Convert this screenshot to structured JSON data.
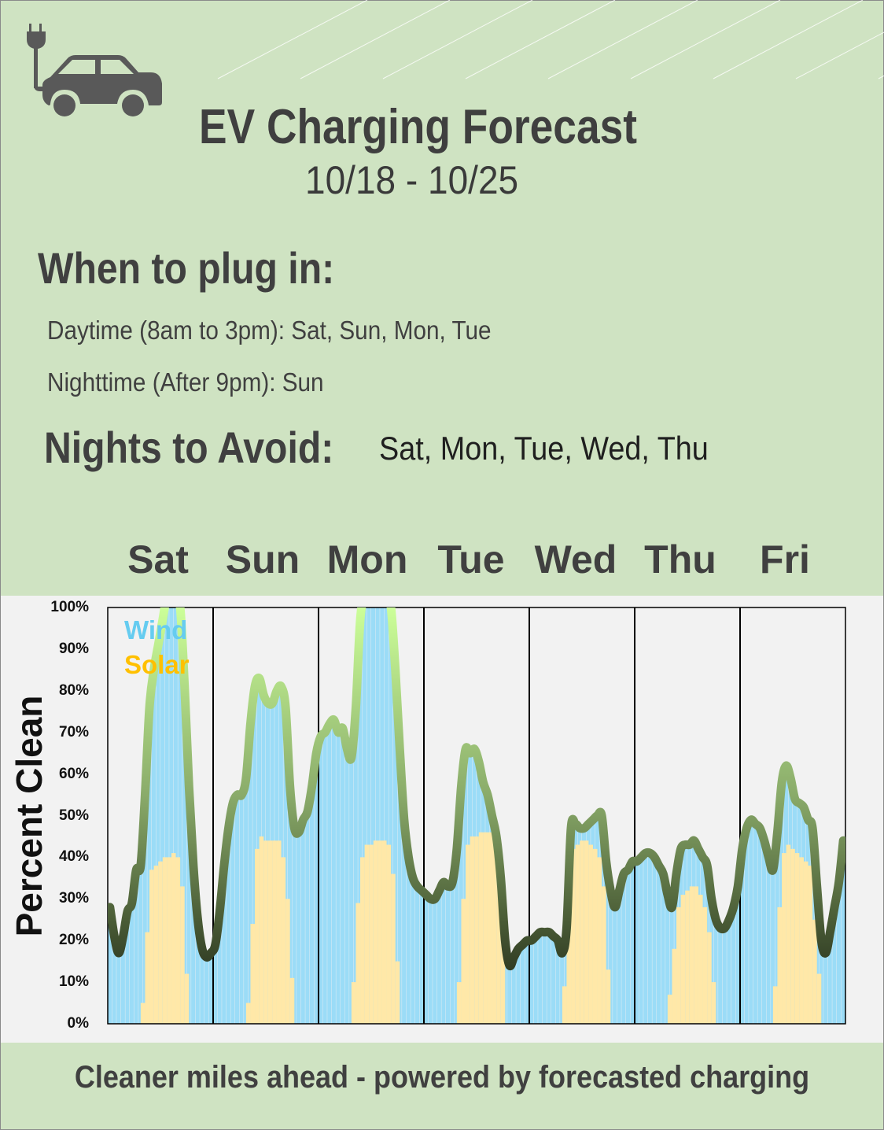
{
  "header": {
    "title": "EV Charging Forecast",
    "date_range": "10/18  -  10/25",
    "icon": "electric-car-plug-icon"
  },
  "plug_in": {
    "heading": "When to plug in:",
    "daytime": "Daytime (8am to 3pm): Sat, Sun, Mon, Tue",
    "nighttime": "Nighttime  (After 9pm): Sun"
  },
  "avoid": {
    "heading": "Nights to Avoid:",
    "days": "Sat, Mon, Tue, Wed, Thu"
  },
  "footer": {
    "tagline": "Cleaner miles ahead - powered by forecasted charging"
  },
  "colors": {
    "background": "#cfe3c2",
    "wind": "#9bdcf7",
    "solar": "#ffe8a8",
    "wind_legend": "#66ccf0",
    "solar_legend": "#ffc000",
    "line_high": "#ccff99",
    "line_low": "#151a10"
  },
  "chart_data": {
    "type": "area",
    "ylabel": "Percent Clean",
    "ylim": [
      0,
      100
    ],
    "yticks": [
      "0%",
      "10%",
      "20%",
      "30%",
      "40%",
      "50%",
      "60%",
      "70%",
      "80%",
      "90%",
      "100%"
    ],
    "categories": [
      "Sat",
      "Sun",
      "Mon",
      "Tue",
      "Wed",
      "Thu",
      "Fri"
    ],
    "hours_per_day": 24,
    "legend": [
      "Wind",
      "Solar"
    ],
    "legend_position": "top-left",
    "series": [
      {
        "name": "Total clean (%)",
        "values": [
          [
            28,
            21,
            17,
            21,
            27,
            29,
            37,
            38,
            55,
            76,
            85,
            91,
            97,
            103,
            104,
            102,
            100,
            81,
            57,
            38,
            25,
            18,
            16,
            17
          ],
          [
            19,
            27,
            38,
            47,
            53,
            55,
            55,
            59,
            72,
            81,
            83,
            79,
            77,
            77,
            80,
            81,
            76,
            57,
            47,
            46,
            49,
            51,
            57,
            65
          ],
          [
            69,
            70,
            72,
            73,
            70,
            71,
            66,
            64,
            76,
            97,
            103,
            105,
            106,
            106,
            105,
            103,
            100,
            85,
            66,
            49,
            40,
            35,
            33,
            32
          ],
          [
            31,
            30,
            30,
            32,
            34,
            33,
            34,
            42,
            57,
            66,
            65,
            66,
            63,
            58,
            55,
            50,
            45,
            35,
            20,
            14,
            16,
            18,
            19,
            20
          ],
          [
            20,
            21,
            22,
            22,
            22,
            21,
            20,
            17,
            23,
            47,
            48,
            47,
            47,
            48,
            49,
            50,
            50,
            39,
            32,
            28,
            32,
            36,
            37,
            39
          ],
          [
            39,
            40,
            41,
            41,
            40,
            38,
            36,
            31,
            28,
            36,
            42,
            43,
            43,
            44,
            42,
            40,
            38,
            30,
            25,
            23,
            23,
            25,
            28,
            33
          ],
          [
            42,
            47,
            49,
            48,
            47,
            44,
            40,
            37,
            46,
            58,
            62,
            59,
            54,
            53,
            52,
            49,
            47,
            33,
            20,
            17,
            22,
            28,
            34,
            44
          ]
        ]
      },
      {
        "name": "Solar (%)",
        "first_hour": 8,
        "values": [
          [
            5,
            22,
            37,
            38,
            39,
            40,
            40,
            41,
            40,
            33,
            12
          ],
          [
            5,
            24,
            42,
            45,
            44,
            44,
            44,
            44,
            40,
            30,
            11
          ],
          [
            10,
            29,
            40,
            43,
            43,
            44,
            44,
            44,
            43,
            36,
            15
          ],
          [
            10,
            30,
            43,
            45,
            45,
            46,
            46,
            46,
            45,
            44,
            20
          ],
          [
            9,
            42,
            42,
            43,
            44,
            44,
            43,
            42,
            40,
            33,
            13
          ],
          [
            7,
            18,
            28,
            31,
            32,
            33,
            33,
            31,
            28,
            22,
            10
          ],
          [
            9,
            28,
            41,
            43,
            42,
            41,
            40,
            39,
            38,
            25,
            12
          ]
        ]
      }
    ]
  }
}
